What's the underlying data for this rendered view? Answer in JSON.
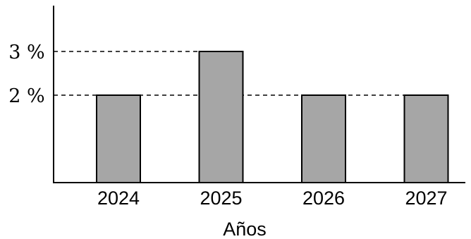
{
  "chart_data": {
    "type": "bar",
    "categories": [
      "2024",
      "2025",
      "2026",
      "2027"
    ],
    "values": [
      2,
      3,
      2,
      2
    ],
    "ylim": [
      0,
      4
    ],
    "y_ticks": [
      {
        "value": 2,
        "label": "2 %"
      },
      {
        "value": 3,
        "label": "3 %"
      }
    ],
    "reference_lines": [
      2,
      3
    ],
    "title": "",
    "xlabel": "Años",
    "ylabel": "",
    "grid": false,
    "colors": {
      "bar_fill": "#a6a6a6",
      "bar_stroke": "#000000",
      "axis": "#000000",
      "dashed_line": "#000000"
    }
  }
}
